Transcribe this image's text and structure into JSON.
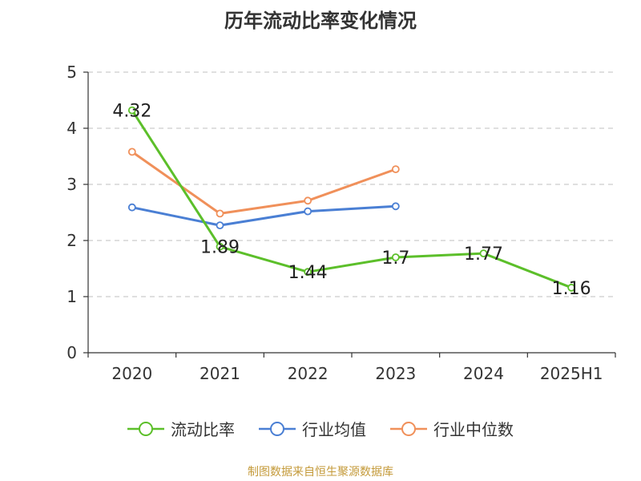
{
  "chart_data": {
    "type": "line",
    "title": "历年流动比率变化情况",
    "categories": [
      "2020",
      "2021",
      "2022",
      "2023",
      "2024",
      "2025H1"
    ],
    "ylim": [
      0,
      5
    ],
    "yticks": [
      "0",
      "1",
      "2",
      "3",
      "4",
      "5"
    ],
    "grid": true,
    "legend_position": "bottom",
    "series": [
      {
        "name": "流动比率",
        "color": "#5cbf2a",
        "values": [
          4.32,
          1.89,
          1.44,
          1.7,
          1.77,
          1.16
        ],
        "labels": [
          "4.32",
          "1.89",
          "1.44",
          "1.7",
          "1.77",
          "1.16"
        ]
      },
      {
        "name": "行业均值",
        "color": "#4a7fd4",
        "values": [
          2.59,
          2.27,
          2.52,
          2.61,
          null,
          null
        ]
      },
      {
        "name": "行业中位数",
        "color": "#f0905a",
        "values": [
          3.58,
          2.48,
          2.71,
          3.27,
          null,
          null
        ]
      }
    ]
  },
  "footer": {
    "source": "制图数据来自恒生聚源数据库"
  }
}
